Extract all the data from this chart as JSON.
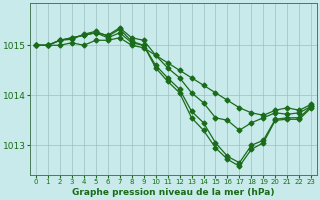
{
  "background_color": "#c8eaea",
  "grid_color": "#9fbfbf",
  "line_color": "#1a6b1a",
  "marker_style": "D",
  "marker_size": 2.5,
  "line_width": 0.9,
  "xlabel": "Graphe pression niveau de la mer (hPa)",
  "xlabel_fontsize": 6.5,
  "xlabel_fontweight": "bold",
  "xlim": [
    -0.5,
    23.5
  ],
  "ylim": [
    1012.4,
    1015.85
  ],
  "yticks": [
    1013,
    1014,
    1015
  ],
  "ytick_fontsize": 6.5,
  "xtick_fontsize": 5.0,
  "xticks": [
    0,
    1,
    2,
    3,
    4,
    5,
    6,
    7,
    8,
    9,
    10,
    11,
    12,
    13,
    14,
    15,
    16,
    17,
    18,
    19,
    20,
    21,
    22,
    23
  ],
  "series": [
    [
      1015.0,
      1015.0,
      1015.0,
      1015.05,
      1015.0,
      1015.1,
      1015.1,
      1015.15,
      1015.0,
      1014.95,
      1014.8,
      1014.65,
      1014.5,
      1014.35,
      1014.2,
      1014.05,
      1013.9,
      1013.75,
      1013.65,
      1013.6,
      1013.7,
      1013.75,
      1013.7,
      1013.82
    ],
    [
      1015.0,
      1015.0,
      1015.1,
      1015.15,
      1015.2,
      1015.25,
      1015.2,
      1015.35,
      1015.15,
      1015.1,
      1014.8,
      1014.55,
      1014.35,
      1014.05,
      1013.85,
      1013.55,
      1013.5,
      1013.3,
      1013.45,
      1013.55,
      1013.65,
      1013.62,
      1013.65,
      1013.78
    ],
    [
      1015.0,
      1015.0,
      1015.1,
      1015.15,
      1015.2,
      1015.25,
      1015.15,
      1015.25,
      1015.05,
      1015.0,
      1014.6,
      1014.35,
      1014.12,
      1013.68,
      1013.45,
      1013.05,
      1012.78,
      1012.65,
      1013.0,
      1013.1,
      1013.52,
      1013.55,
      1013.55,
      1013.78
    ],
    [
      1015.0,
      1015.0,
      1015.1,
      1015.12,
      1015.22,
      1015.28,
      1015.18,
      1015.32,
      1015.08,
      1015.0,
      1014.55,
      1014.28,
      1014.05,
      1013.55,
      1013.3,
      1012.95,
      1012.72,
      1012.58,
      1012.92,
      1013.05,
      1013.5,
      1013.52,
      1013.52,
      1013.75
    ]
  ]
}
